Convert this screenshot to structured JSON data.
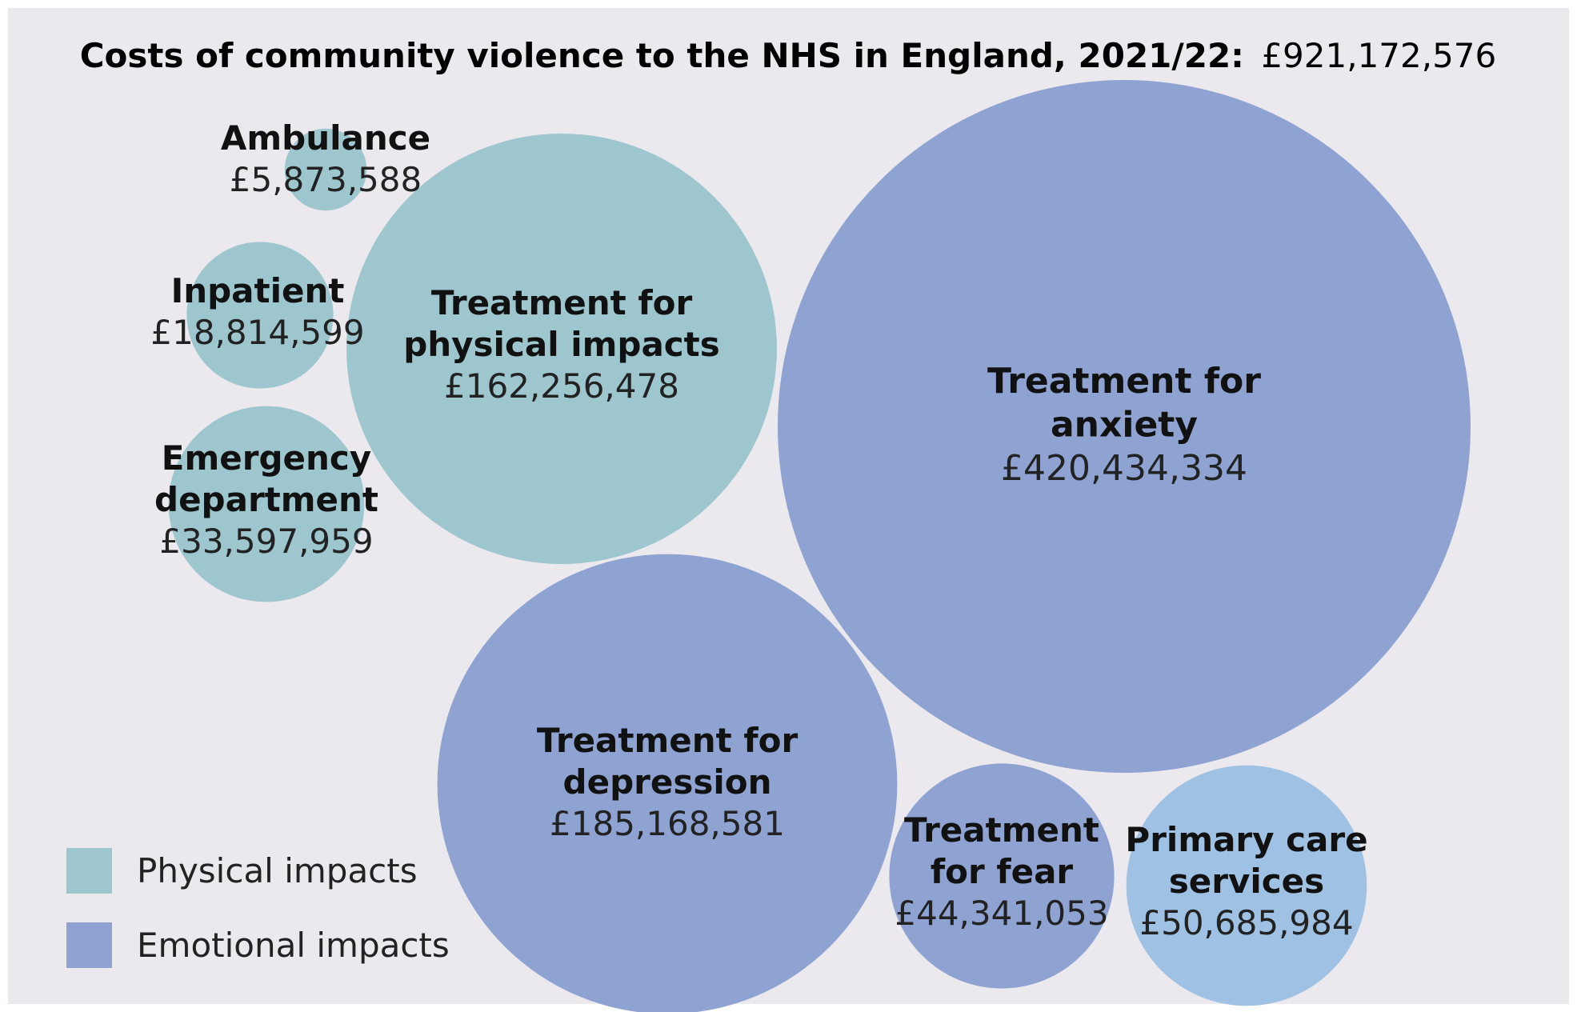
{
  "chart_data": {
    "type": "bubble",
    "title_bold": "Costs of community violence to the NHS in England, 2021/22:",
    "title_value": "£921,172,576",
    "colors": {
      "background": "#ECE9EE",
      "page": "#FFFFFF",
      "physical": "#9DC6CE",
      "emotional": "#8FA3D2",
      "primary_care": "#9FC1E3"
    },
    "legend": [
      {
        "label": "Physical impacts",
        "category": "physical"
      },
      {
        "label": "Emotional impacts",
        "category": "emotional"
      }
    ],
    "bubbles": [
      {
        "id": "ambulance",
        "lines": [
          "Ambulance"
        ],
        "value_label": "£5,873,588",
        "value": 5873588,
        "category": "physical"
      },
      {
        "id": "inpatient",
        "lines": [
          "Inpatient"
        ],
        "value_label": "£18,814,599",
        "value": 18814599,
        "category": "physical"
      },
      {
        "id": "emergency-department",
        "lines": [
          "Emergency",
          "department"
        ],
        "value_label": "£33,597,959",
        "value": 33597959,
        "category": "physical"
      },
      {
        "id": "physical-impacts",
        "lines": [
          "Treatment for",
          "physical impacts"
        ],
        "value_label": "£162,256,478",
        "value": 162256478,
        "category": "physical"
      },
      {
        "id": "anxiety",
        "lines": [
          "Treatment for",
          "anxiety"
        ],
        "value_label": "£420,434,334",
        "value": 420434334,
        "category": "emotional"
      },
      {
        "id": "depression",
        "lines": [
          "Treatment for",
          "depression"
        ],
        "value_label": "£185,168,581",
        "value": 185168581,
        "category": "emotional"
      },
      {
        "id": "fear",
        "lines": [
          "Treatment",
          "for fear"
        ],
        "value_label": "£44,341,053",
        "value": 44341053,
        "category": "emotional"
      },
      {
        "id": "primary-care",
        "lines": [
          "Primary care",
          "services"
        ],
        "value_label": "£50,685,984",
        "value": 50685984,
        "category": "primary_care"
      }
    ]
  }
}
